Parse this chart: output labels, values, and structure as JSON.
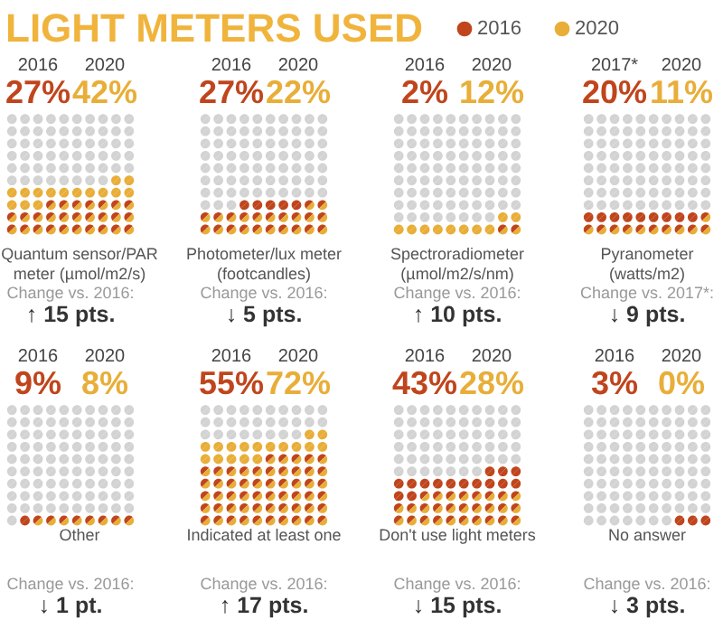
{
  "chart_data": [
    {
      "type": "other",
      "title": "LIGHT METERS USED",
      "legend": "top right",
      "series": [
        {
          "name": "2016",
          "color": "#c0451c"
        },
        {
          "name": "2020",
          "color": "#e8ae38"
        }
      ]
    },
    {
      "type": "other",
      "categories": [
        "2016",
        "2020"
      ],
      "values": [
        27,
        42
      ],
      "value_labels": [
        "27%",
        "42%"
      ],
      "colors": [
        "#c0451c",
        "#e8ae38"
      ],
      "xlabel": "Quantum sensor/PAR meter (µmol/m2/s)",
      "annotations": [
        "Change vs. 2016:",
        "↑ 15 pts."
      ]
    },
    {
      "type": "other",
      "categories": [
        "2016",
        "2020"
      ],
      "values": [
        27,
        22
      ],
      "value_labels": [
        "27%",
        "22%"
      ],
      "colors": [
        "#c0451c",
        "#e8ae38"
      ],
      "xlabel": "Photometer/lux meter (footcandles)",
      "annotations": [
        "Change vs. 2016:",
        "↓ 5 pts."
      ]
    },
    {
      "type": "other",
      "categories": [
        "2016",
        "2020"
      ],
      "values": [
        2,
        12
      ],
      "value_labels": [
        "2%",
        "12%"
      ],
      "colors": [
        "#c0451c",
        "#e8ae38"
      ],
      "xlabel": "Spectroradiometer (µmol/m2/s/nm)",
      "annotations": [
        "Change vs. 2016:",
        "↑ 10 pts."
      ]
    },
    {
      "type": "other",
      "categories": [
        "2017*",
        "2020"
      ],
      "values": [
        20,
        11
      ],
      "value_labels": [
        "20%",
        "11%"
      ],
      "colors": [
        "#c0451c",
        "#e8ae38"
      ],
      "xlabel": "Pyranometer (watts/m2)",
      "annotations": [
        "Change vs. 2017*:",
        "↓ 9 pts."
      ]
    },
    {
      "type": "other",
      "categories": [
        "2016",
        "2020"
      ],
      "values": [
        9,
        8
      ],
      "value_labels": [
        "9%",
        "8%"
      ],
      "colors": [
        "#c0451c",
        "#e8ae38"
      ],
      "xlabel": "Other",
      "annotations": [
        "Change vs. 2016:",
        "↓ 1 pt."
      ]
    },
    {
      "type": "other",
      "categories": [
        "2016",
        "2020"
      ],
      "values": [
        55,
        72
      ],
      "value_labels": [
        "55%",
        "72%"
      ],
      "colors": [
        "#c0451c",
        "#e8ae38"
      ],
      "xlabel": "Indicated at least one",
      "annotations": [
        "Change vs. 2016:",
        "↑ 17 pts."
      ]
    },
    {
      "type": "other",
      "categories": [
        "2016",
        "2020"
      ],
      "values": [
        43,
        28
      ],
      "value_labels": [
        "43%",
        "28%"
      ],
      "colors": [
        "#c0451c",
        "#e8ae38"
      ],
      "xlabel": "Don't use light meters",
      "annotations": [
        "Change vs. 2016:",
        "↓ 15 pts."
      ]
    },
    {
      "type": "other",
      "categories": [
        "2016",
        "2020"
      ],
      "values": [
        3,
        0
      ],
      "value_labels": [
        "3%",
        "0%"
      ],
      "colors": [
        "#c0451c",
        "#e8ae38"
      ],
      "xlabel": "No answer",
      "annotations": [
        "Change vs. 2016:",
        "↓ 3 pts."
      ]
    }
  ]
}
